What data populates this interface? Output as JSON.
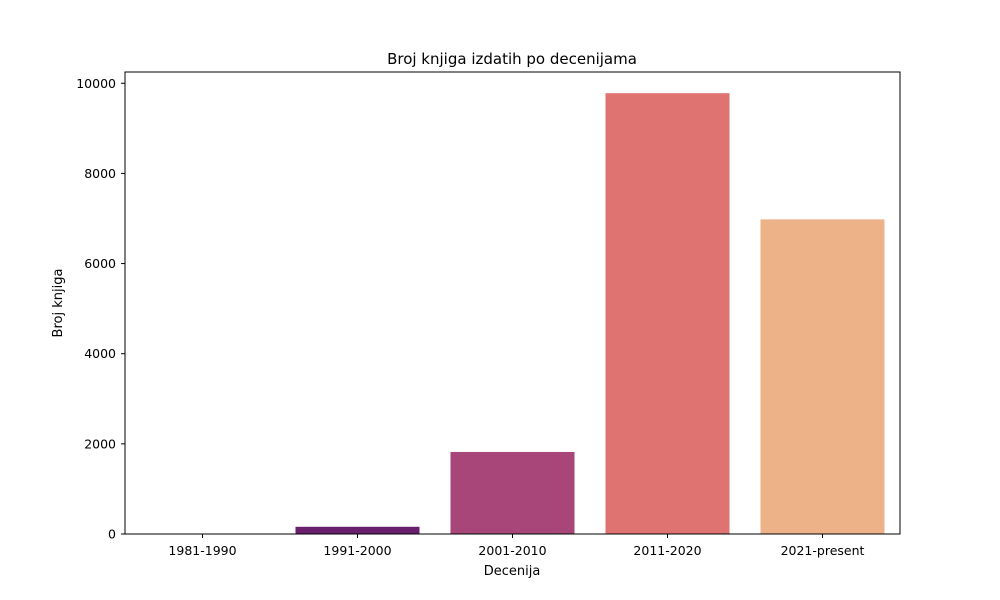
{
  "chart_data": {
    "type": "bar",
    "title": "Broj knjiga izdatih po decenijama",
    "xlabel": "Decenija",
    "ylabel": "Broj knjiga",
    "categories": [
      "1981-1990",
      "1991-2000",
      "2001-2010",
      "2011-2020",
      "2021-present"
    ],
    "values": [
      5,
      160,
      1820,
      9780,
      6980
    ],
    "colors": [
      "#2b0f4c",
      "#6a1e6e",
      "#a84679",
      "#df7371",
      "#eeb288"
    ],
    "ylim": [
      0,
      10250
    ],
    "yticks": [
      0,
      2000,
      4000,
      6000,
      8000,
      10000
    ],
    "grid": false,
    "legend": "none"
  }
}
